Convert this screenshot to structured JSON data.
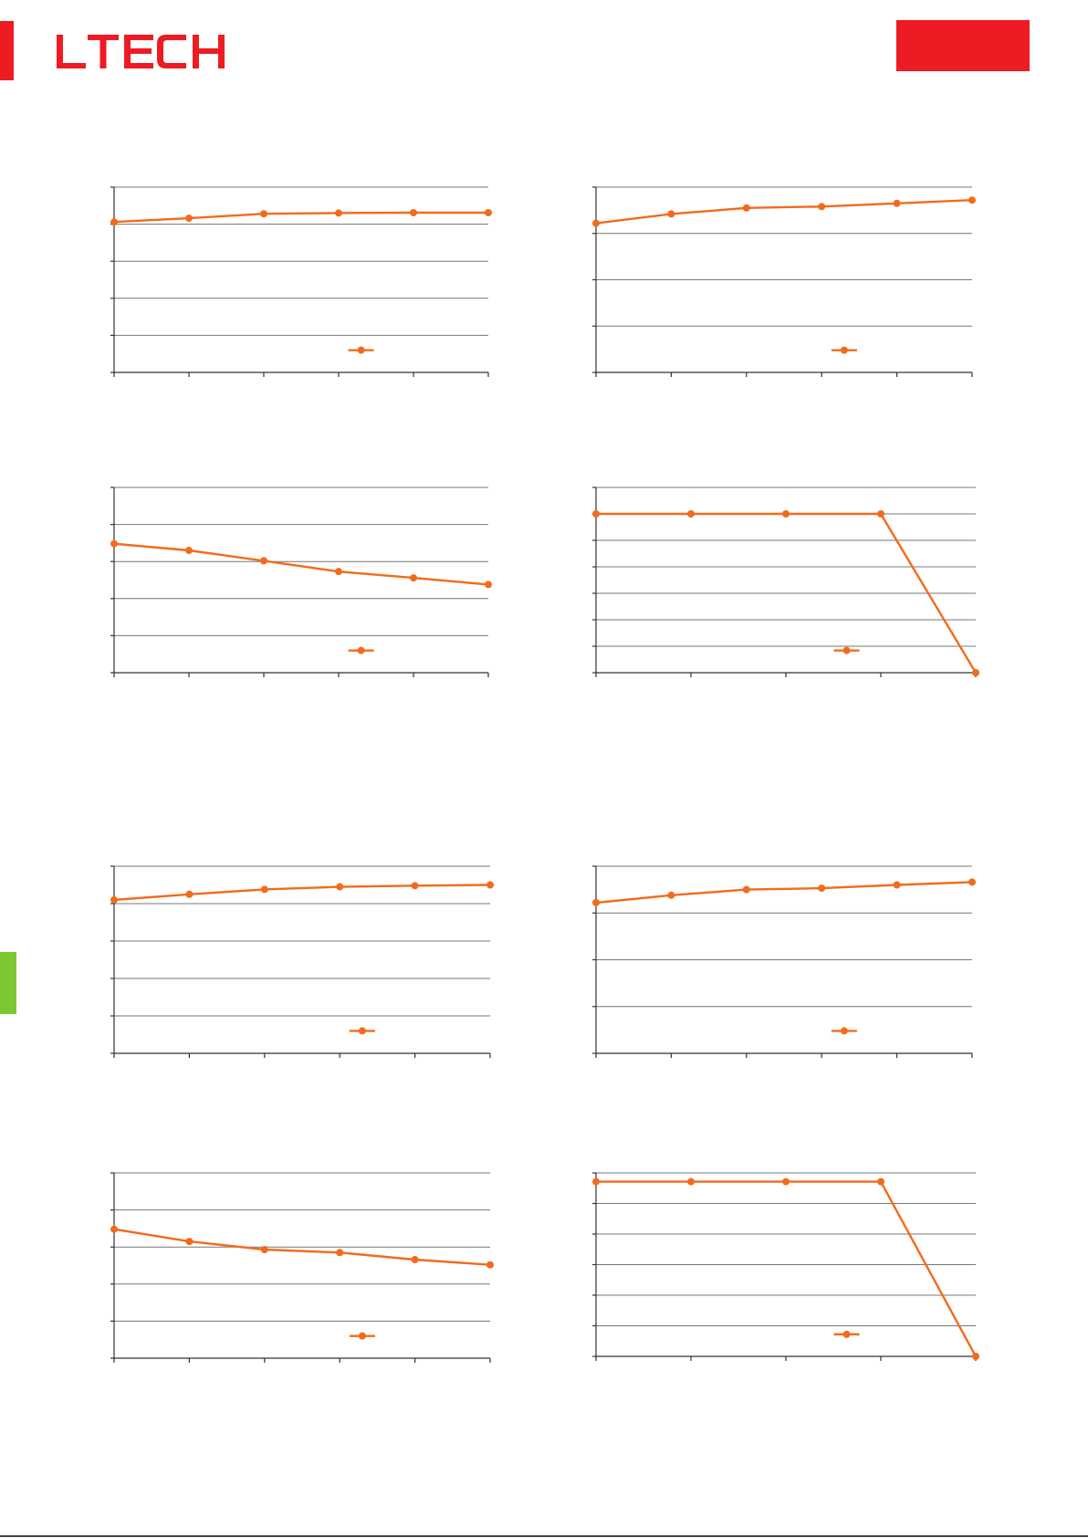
{
  "header": {
    "logo_text": "LTECH",
    "brand_color": "#ed1c24",
    "tab_color": "#7dc832"
  },
  "series_color": "#f26b1d",
  "charts": [
    {
      "id": "chart-1",
      "chart_data": {
        "type": "line",
        "x": [
          0,
          1,
          2,
          3,
          4,
          5
        ],
        "series": [
          {
            "values": [
              4.06,
              4.16,
              4.28,
              4.3,
              4.31,
              4.31
            ]
          }
        ],
        "ylim": [
          0,
          5
        ],
        "xlim": [
          0,
          5
        ],
        "grid": true,
        "legend": "bottom-right",
        "ticks_y": 6,
        "ticks_x": 6
      }
    },
    {
      "id": "chart-2",
      "chart_data": {
        "type": "line",
        "x": [
          0,
          1,
          2,
          3,
          4,
          5
        ],
        "series": [
          {
            "values": [
              3.22,
              3.42,
              3.55,
              3.58,
              3.65,
              3.72
            ]
          }
        ],
        "ylim": [
          0,
          4
        ],
        "xlim": [
          0,
          5
        ],
        "grid": true,
        "legend": "bottom-right",
        "ticks_y": 5,
        "ticks_x": 6
      }
    },
    {
      "id": "chart-3",
      "chart_data": {
        "type": "line",
        "x": [
          0,
          1,
          2,
          3,
          4,
          5
        ],
        "series": [
          {
            "values": [
              3.48,
              3.3,
              3.02,
              2.73,
              2.56,
              2.38
            ]
          }
        ],
        "ylim": [
          0,
          5
        ],
        "xlim": [
          0,
          5
        ],
        "grid": true,
        "legend": "bottom-right",
        "ticks_y": 6,
        "ticks_x": 6
      }
    },
    {
      "id": "chart-4",
      "chart_data": {
        "type": "line",
        "x": [
          0,
          1,
          2,
          3,
          4
        ],
        "series": [
          {
            "values": [
              6.0,
              6.0,
              6.0,
              6.0,
              0.0
            ]
          }
        ],
        "ylim": [
          0,
          7
        ],
        "xlim": [
          0,
          4
        ],
        "grid": true,
        "legend": "bottom-right",
        "ticks_y": 8,
        "ticks_x": 5
      }
    },
    {
      "id": "chart-5",
      "chart_data": {
        "type": "line",
        "x": [
          0,
          1,
          2,
          3,
          4,
          5
        ],
        "series": [
          {
            "values": [
              4.1,
              4.25,
              4.38,
              4.45,
              4.48,
              4.5
            ]
          }
        ],
        "ylim": [
          0,
          5
        ],
        "xlim": [
          0,
          5
        ],
        "grid": true,
        "legend": "bottom-right",
        "ticks_y": 6,
        "ticks_x": 6
      }
    },
    {
      "id": "chart-6",
      "chart_data": {
        "type": "line",
        "x": [
          0,
          1,
          2,
          3,
          4,
          5
        ],
        "series": [
          {
            "values": [
              3.22,
              3.38,
              3.5,
              3.53,
              3.6,
              3.66
            ]
          }
        ],
        "ylim": [
          0,
          4
        ],
        "xlim": [
          0,
          5
        ],
        "grid": true,
        "legend": "bottom-right",
        "ticks_y": 5,
        "ticks_x": 6
      }
    },
    {
      "id": "chart-7",
      "chart_data": {
        "type": "line",
        "x": [
          0,
          1,
          2,
          3,
          4,
          5
        ],
        "series": [
          {
            "values": [
              3.48,
              3.15,
              2.93,
              2.85,
              2.66,
              2.52
            ]
          }
        ],
        "ylim": [
          0,
          5
        ],
        "xlim": [
          0,
          5
        ],
        "grid": true,
        "legend": "bottom-right",
        "ticks_y": 6,
        "ticks_x": 6
      }
    },
    {
      "id": "chart-8",
      "chart_data": {
        "type": "line",
        "x": [
          0,
          1,
          2,
          3,
          4
        ],
        "series": [
          {
            "values": [
              6.0,
              6.0,
              6.0,
              6.0,
              0.0
            ]
          }
        ],
        "ylim": [
          0,
          6.3
        ],
        "xlim": [
          0,
          4
        ],
        "grid": true,
        "legend": "bottom-right",
        "ticks_y": 7,
        "ticks_x": 5
      }
    }
  ]
}
